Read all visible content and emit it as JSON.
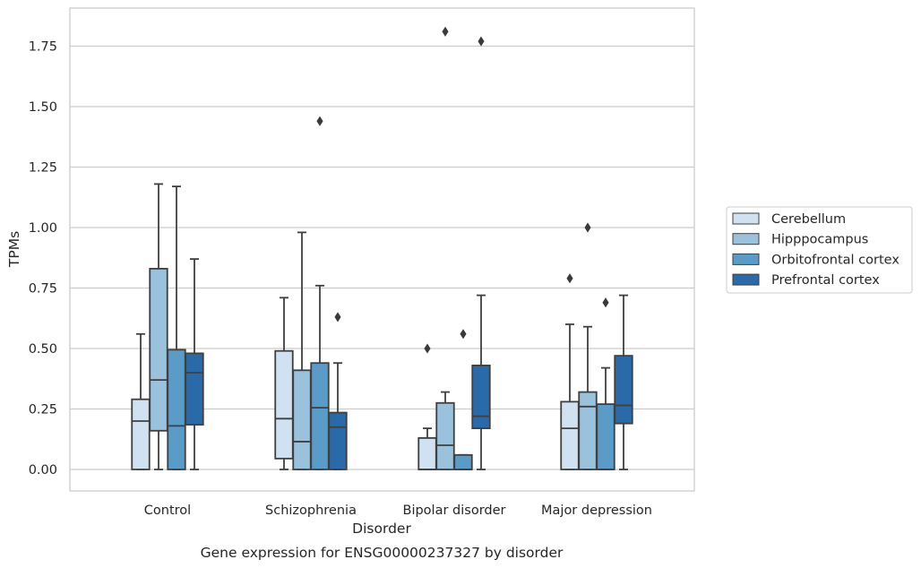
{
  "chart_data": {
    "type": "box",
    "xlabel": "Disorder",
    "ylabel": "TPMs",
    "caption": "Gene expression for ENSG00000237327 by disorder",
    "ylim": [
      -0.09,
      1.9
    ],
    "yticks": [
      0.0,
      0.25,
      0.5,
      0.75,
      1.0,
      1.25,
      1.5,
      1.75
    ],
    "ytick_labels": [
      "0.00",
      "0.25",
      "0.50",
      "0.75",
      "1.00",
      "1.25",
      "1.50",
      "1.75"
    ],
    "grid": "horizontal",
    "legend_position": "right",
    "categories": [
      "Control",
      "Schizophrenia",
      "Bipolar disorder",
      "Major depression"
    ],
    "series": [
      {
        "name": "Cerebellum",
        "color": "#d0e1f2",
        "boxes": [
          {
            "whislo": 0.0,
            "q1": 0.0,
            "med": 0.2,
            "q3": 0.29,
            "whishi": 0.56,
            "fliers": []
          },
          {
            "whislo": 0.0,
            "q1": 0.045,
            "med": 0.21,
            "q3": 0.49,
            "whishi": 0.71,
            "fliers": []
          },
          {
            "whislo": 0.0,
            "q1": 0.0,
            "med": 0.0,
            "q3": 0.13,
            "whishi": 0.17,
            "fliers": [
              0.5
            ]
          },
          {
            "whislo": 0.0,
            "q1": 0.0,
            "med": 0.17,
            "q3": 0.28,
            "whishi": 0.6,
            "fliers": [
              0.79
            ]
          }
        ]
      },
      {
        "name": "Hipppocampus",
        "color": "#9ac2dc",
        "boxes": [
          {
            "whislo": 0.0,
            "q1": 0.16,
            "med": 0.37,
            "q3": 0.83,
            "whishi": 1.18,
            "fliers": []
          },
          {
            "whislo": 0.0,
            "q1": 0.0,
            "med": 0.115,
            "q3": 0.41,
            "whishi": 0.98,
            "fliers": []
          },
          {
            "whislo": 0.0,
            "q1": 0.0,
            "med": 0.1,
            "q3": 0.275,
            "whishi": 0.32,
            "fliers": [
              1.81
            ]
          },
          {
            "whislo": 0.0,
            "q1": 0.0,
            "med": 0.26,
            "q3": 0.32,
            "whishi": 0.59,
            "fliers": [
              1.0
            ]
          }
        ]
      },
      {
        "name": "Orbitofrontal cortex",
        "color": "#5a9bc8",
        "boxes": [
          {
            "whislo": 0.0,
            "q1": 0.0,
            "med": 0.18,
            "q3": 0.495,
            "whishi": 1.17,
            "fliers": []
          },
          {
            "whislo": 0.0,
            "q1": 0.0,
            "med": 0.255,
            "q3": 0.44,
            "whishi": 0.76,
            "fliers": [
              1.44
            ]
          },
          {
            "whislo": 0.0,
            "q1": 0.0,
            "med": 0.0,
            "q3": 0.06,
            "whishi": 0.06,
            "fliers": [
              0.56
            ]
          },
          {
            "whislo": 0.0,
            "q1": 0.0,
            "med": 0.0,
            "q3": 0.27,
            "whishi": 0.42,
            "fliers": [
              0.69
            ]
          }
        ]
      },
      {
        "name": "Prefrontal cortex",
        "color": "#2b6aa8",
        "boxes": [
          {
            "whislo": 0.0,
            "q1": 0.185,
            "med": 0.4,
            "q3": 0.48,
            "whishi": 0.87,
            "fliers": []
          },
          {
            "whislo": 0.0,
            "q1": 0.0,
            "med": 0.175,
            "q3": 0.235,
            "whishi": 0.44,
            "fliers": [
              0.63
            ]
          },
          {
            "whislo": 0.0,
            "q1": 0.17,
            "med": 0.22,
            "q3": 0.43,
            "whishi": 0.72,
            "fliers": [
              1.77
            ]
          },
          {
            "whislo": 0.0,
            "q1": 0.19,
            "med": 0.265,
            "q3": 0.47,
            "whishi": 0.72,
            "fliers": []
          }
        ]
      }
    ]
  }
}
